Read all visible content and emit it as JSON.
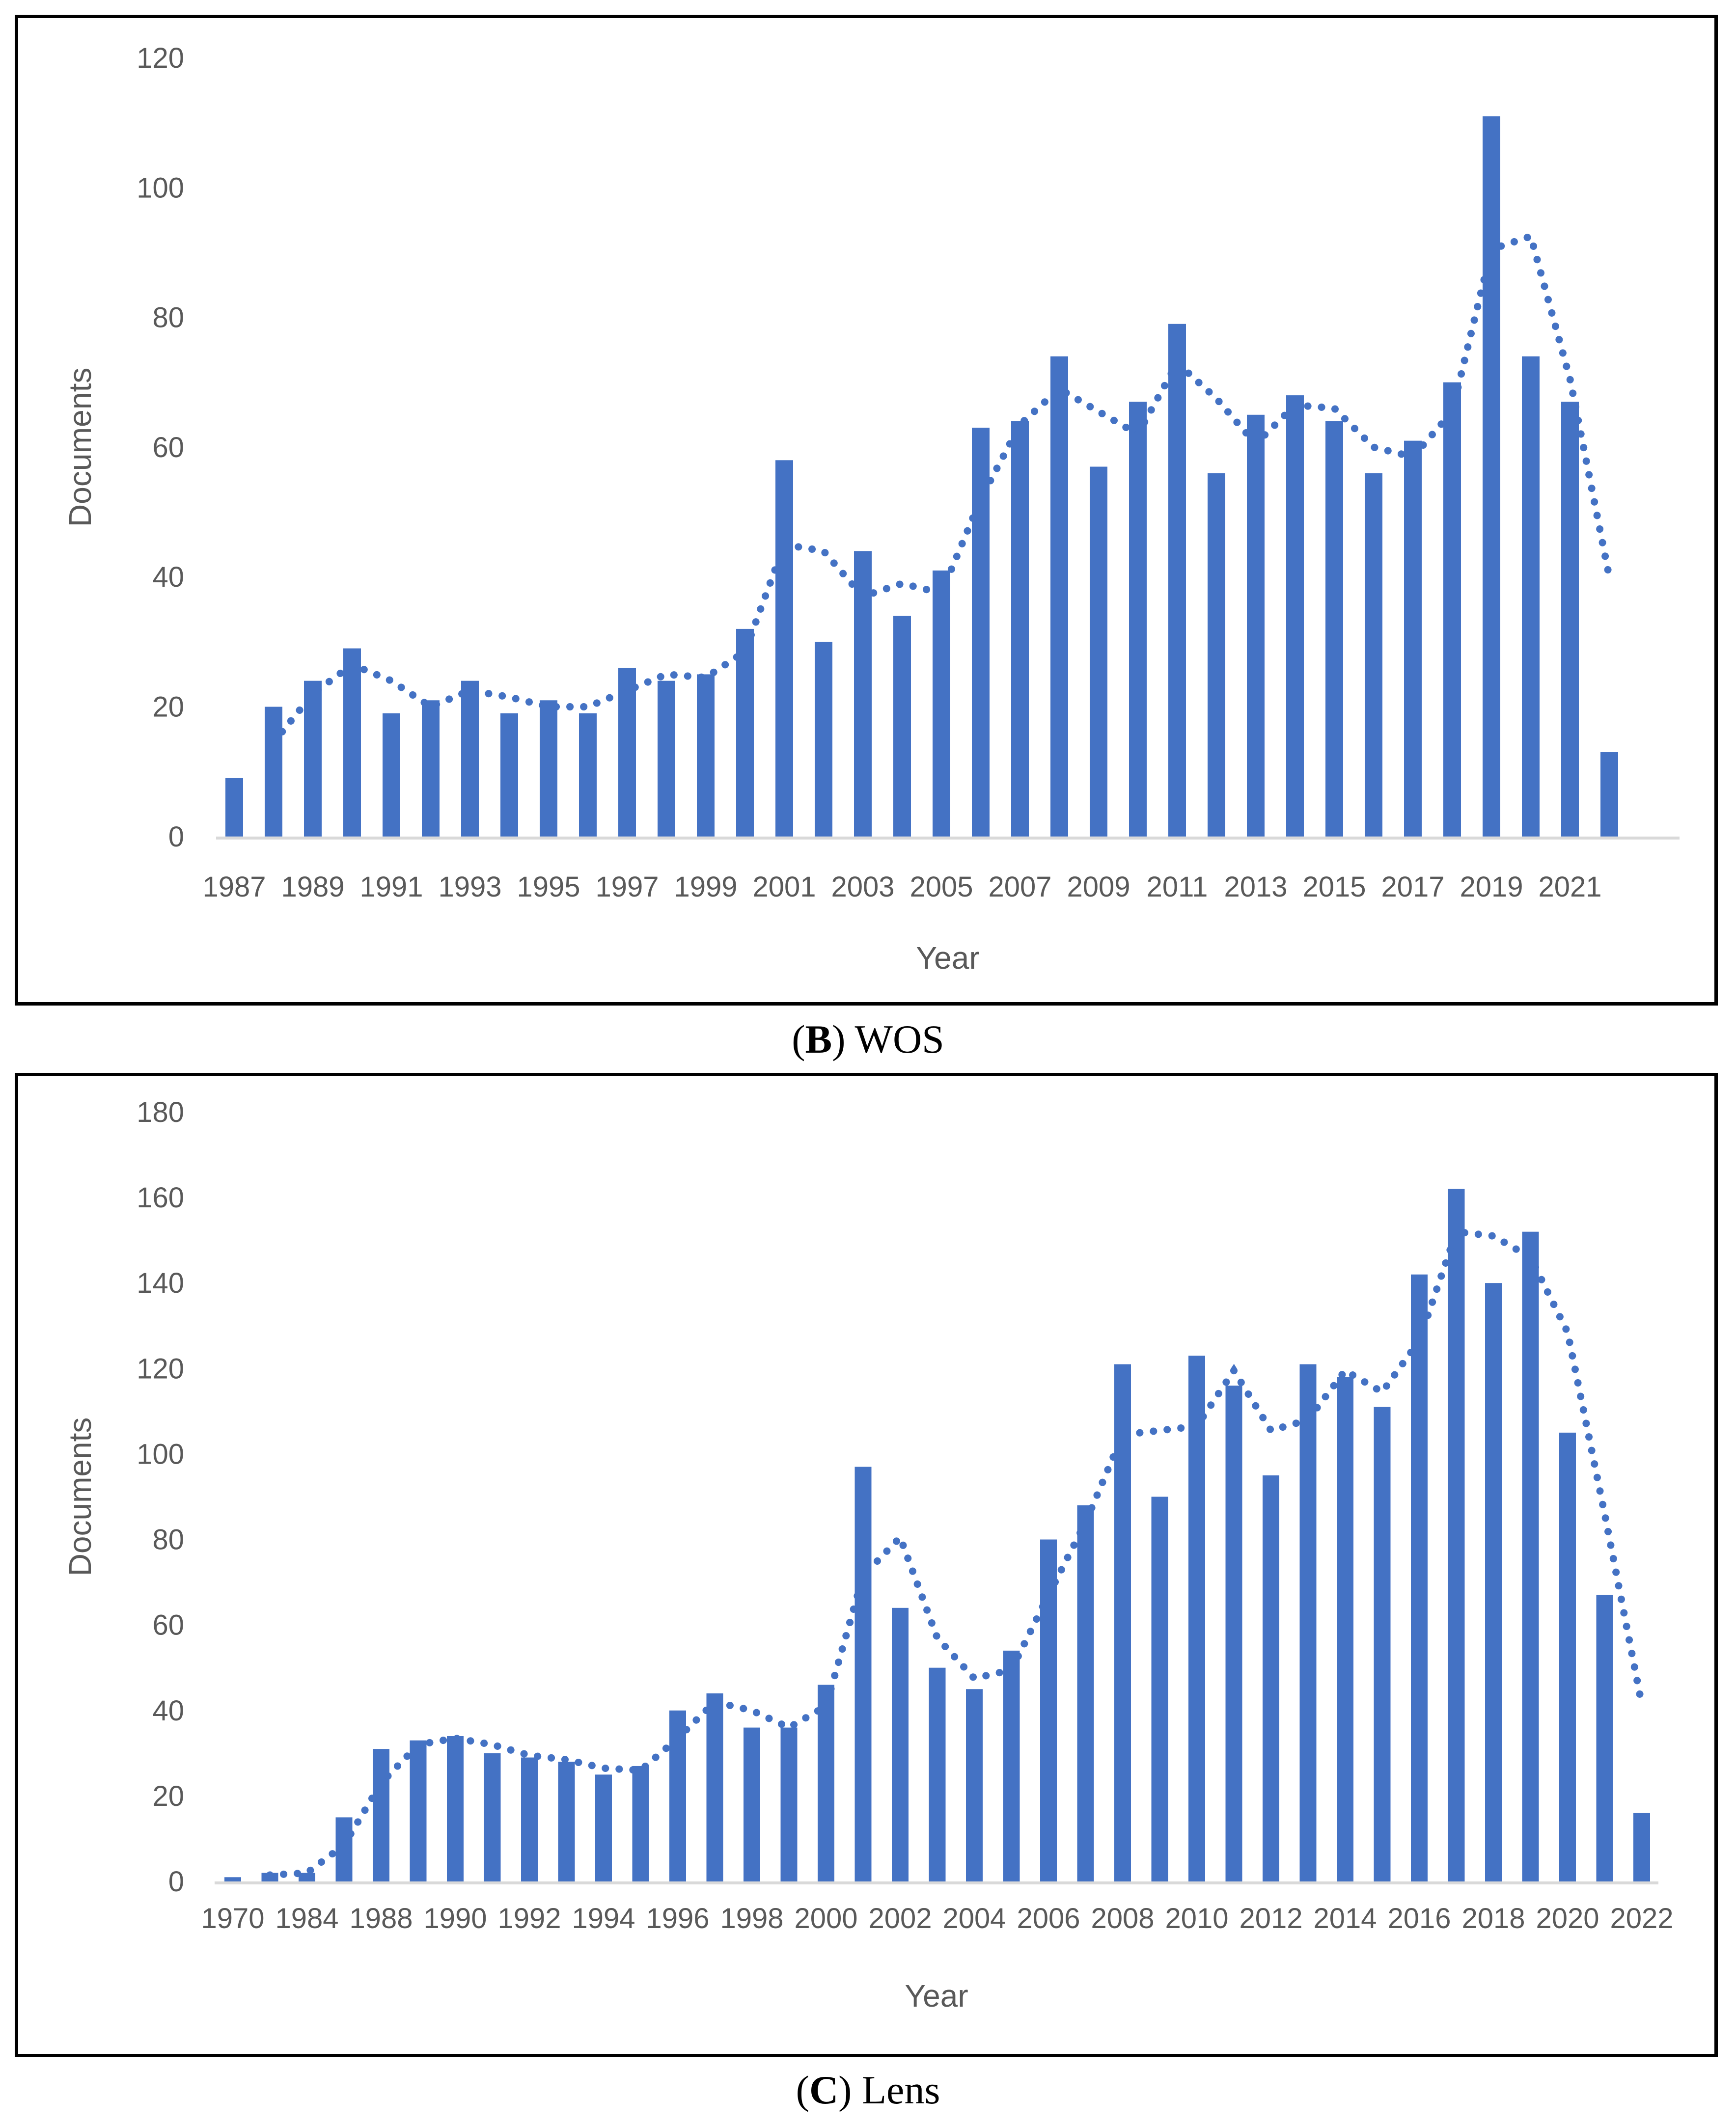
{
  "page": {
    "background": "#ffffff"
  },
  "colors": {
    "bar": "#4472C4",
    "trend": "#4472C4",
    "axis_line": "#D9D9D9",
    "tick_text": "#595959",
    "axis_title_text": "#595959",
    "panel_border": "#000000"
  },
  "captions": {
    "panel_b": {
      "open": "(",
      "letter": "B",
      "rest": ") WOS"
    },
    "panel_c": {
      "open": "(",
      "letter": "C",
      "rest": ") Lens"
    }
  },
  "chart_data": [
    {
      "id": "wos",
      "type": "bar",
      "title": "",
      "xlabel": "Year",
      "ylabel": "Documents",
      "ylim": [
        0,
        120
      ],
      "yticks": [
        0,
        20,
        40,
        60,
        80,
        100,
        120
      ],
      "grid": false,
      "legend": "none",
      "categories": [
        "1987",
        "1988",
        "1989",
        "1990",
        "1991",
        "1992",
        "1993",
        "1994",
        "1995",
        "1996",
        "1997",
        "1998",
        "1999",
        "2000",
        "2001",
        "2002",
        "2003",
        "2004",
        "2005",
        "2006",
        "2007",
        "2008",
        "2009",
        "2010",
        "2011",
        "2012",
        "2013",
        "2014",
        "2015",
        "2016",
        "2017",
        "2018",
        "2019",
        "2020",
        "2021",
        "2022"
      ],
      "xtick_labels_shown": [
        "1987",
        "1989",
        "1991",
        "1993",
        "1995",
        "1997",
        "1999",
        "2001",
        "2003",
        "2005",
        "2007",
        "2009",
        "2011",
        "2013",
        "2015",
        "2017",
        "2019",
        "2021"
      ],
      "values": [
        9,
        20,
        24,
        29,
        19,
        21,
        24,
        19,
        21,
        19,
        26,
        24,
        25,
        32,
        58,
        30,
        44,
        34,
        41,
        63,
        64,
        74,
        57,
        67,
        79,
        56,
        65,
        68,
        64,
        56,
        61,
        70,
        111,
        74,
        67,
        13
      ],
      "trendline": {
        "type": "moving_average",
        "period": 2,
        "style": "dotted"
      }
    },
    {
      "id": "lens",
      "type": "bar",
      "title": "",
      "xlabel": "Year",
      "ylabel": "Documents",
      "ylim": [
        0,
        180
      ],
      "yticks": [
        0,
        20,
        40,
        60,
        80,
        100,
        120,
        140,
        160,
        180
      ],
      "grid": false,
      "legend": "none",
      "categories": [
        "1970",
        "",
        "1984",
        "",
        "1988",
        "1989",
        "1990",
        "1991",
        "1992",
        "1993",
        "1994",
        "1995",
        "1996",
        "1997",
        "1998",
        "1999",
        "2000",
        "2001",
        "2002",
        "2003",
        "2004",
        "2005",
        "2006",
        "2007",
        "2008",
        "2009",
        "2010",
        "2011",
        "2012",
        "2013",
        "2014",
        "2015",
        "2016",
        "2017",
        "2018",
        "2019",
        "2020",
        "2021",
        "2022"
      ],
      "xtick_labels_shown": [
        "1970",
        "1984",
        "1988",
        "1990",
        "1992",
        "1994",
        "1996",
        "1998",
        "2000",
        "2002",
        "2004",
        "2006",
        "2008",
        "2010",
        "2012",
        "2014",
        "2016",
        "2018",
        "2020",
        "2022"
      ],
      "values": [
        1,
        2,
        2,
        15,
        31,
        33,
        34,
        30,
        29,
        28,
        25,
        27,
        40,
        44,
        36,
        36,
        46,
        97,
        64,
        50,
        45,
        54,
        80,
        88,
        121,
        90,
        123,
        116,
        95,
        121,
        118,
        111,
        142,
        162,
        140,
        152,
        105,
        67,
        16
      ],
      "trendline": {
        "type": "moving_average",
        "period": 2,
        "style": "dotted"
      }
    }
  ]
}
